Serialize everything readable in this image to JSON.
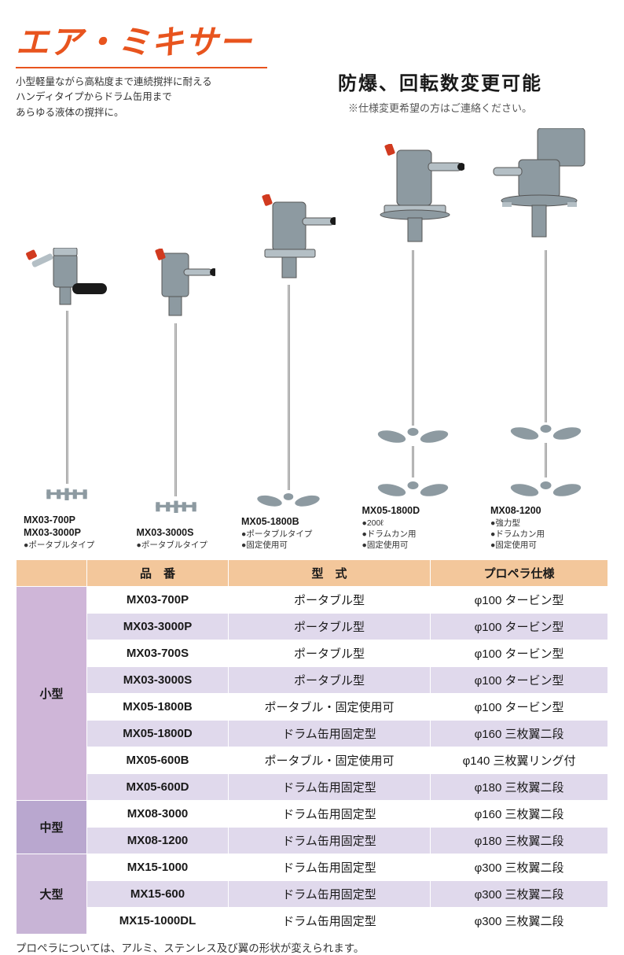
{
  "colors": {
    "title": "#e8541e",
    "rule": "#e8541e",
    "header_bg": "#f3c79b",
    "group_small_bg": "#cfb6d8",
    "group_medium_bg": "#b9a7cf",
    "group_large_bg": "#c8b4d6",
    "row_odd_bg": "#ffffff",
    "row_even_bg": "#e0d9ec",
    "text": "#1a1a1a",
    "mixer_body": "#8d9aa1",
    "mixer_body_light": "#b4bfc5",
    "knob_red": "#d13a1f",
    "handle_black": "#1a1a1a",
    "shaft": "#c4c4c4"
  },
  "title": "エア・ミキサー",
  "intro_lines": [
    "小型軽量ながら高粘度まで連続撹拌に耐える",
    "ハンディタイプからドラム缶用まで",
    "あらゆる液体の撹拌に。"
  ],
  "feature_headline": "防爆、回転数変更可能",
  "feature_note": "※仕様変更希望の方はご連絡ください。",
  "products": [
    {
      "models": [
        "MX03-700P",
        "MX03-3000P"
      ],
      "notes": [
        "●ポータブルタイプ"
      ],
      "head_variant": "handy",
      "shaft_h": 250,
      "blade": "turbine",
      "total_h": 330
    },
    {
      "models": [
        "MX03-3000S"
      ],
      "notes": [
        "●ポータブルタイプ"
      ],
      "head_variant": "clamp_small",
      "shaft_h": 260,
      "blade": "turbine",
      "total_h": 345
    },
    {
      "models": [
        "MX05-1800B"
      ],
      "notes": [
        "●ポータブルタイプ",
        "●固定使用可"
      ],
      "head_variant": "clamp_wide",
      "shaft_h": 280,
      "blade": "three_small",
      "total_h": 400
    },
    {
      "models": [
        "MX05-1800D"
      ],
      "notes": [
        "●200ℓ",
        "●ドラムカン用",
        "●固定使用可"
      ],
      "head_variant": "drum_flange",
      "shaft_h": 300,
      "blade": "three_two",
      "total_h": 450
    },
    {
      "models": [
        "MX08-1200"
      ],
      "notes": [
        "●強力型",
        "●ドラムカン用",
        "●固定使用可"
      ],
      "head_variant": "gearbox",
      "shaft_h": 310,
      "blade": "three_two_large",
      "total_h": 470
    }
  ],
  "table": {
    "headers": [
      "品　番",
      "型　式",
      "プロペラ仕様"
    ],
    "groups": [
      {
        "label": "小型",
        "bg_key": "group_small_bg",
        "rows": [
          [
            "MX03-700P",
            "ポータブル型",
            "φ100 タービン型"
          ],
          [
            "MX03-3000P",
            "ポータブル型",
            "φ100 タービン型"
          ],
          [
            "MX03-700S",
            "ポータブル型",
            "φ100 タービン型"
          ],
          [
            "MX03-3000S",
            "ポータブル型",
            "φ100 タービン型"
          ],
          [
            "MX05-1800B",
            "ポータブル・固定使用可",
            "φ100 タービン型"
          ],
          [
            "MX05-1800D",
            "ドラム缶用固定型",
            "φ160 三枚翼二段"
          ],
          [
            "MX05-600B",
            "ポータブル・固定使用可",
            "φ140 三枚翼リング付"
          ],
          [
            "MX05-600D",
            "ドラム缶用固定型",
            "φ180 三枚翼二段"
          ]
        ]
      },
      {
        "label": "中型",
        "bg_key": "group_medium_bg",
        "rows": [
          [
            "MX08-3000",
            "ドラム缶用固定型",
            "φ160 三枚翼二段"
          ],
          [
            "MX08-1200",
            "ドラム缶用固定型",
            "φ180 三枚翼二段"
          ]
        ]
      },
      {
        "label": "大型",
        "bg_key": "group_large_bg",
        "rows": [
          [
            "MX15-1000",
            "ドラム缶用固定型",
            "φ300 三枚翼二段"
          ],
          [
            "MX15-600",
            "ドラム缶用固定型",
            "φ300 三枚翼二段"
          ],
          [
            "MX15-1000DL",
            "ドラム缶用固定型",
            "φ300 三枚翼二段"
          ]
        ]
      }
    ]
  },
  "footnote": "プロペラについては、アルミ、ステンレス及び翼の形状が変えられます。",
  "group_col_width": 90
}
